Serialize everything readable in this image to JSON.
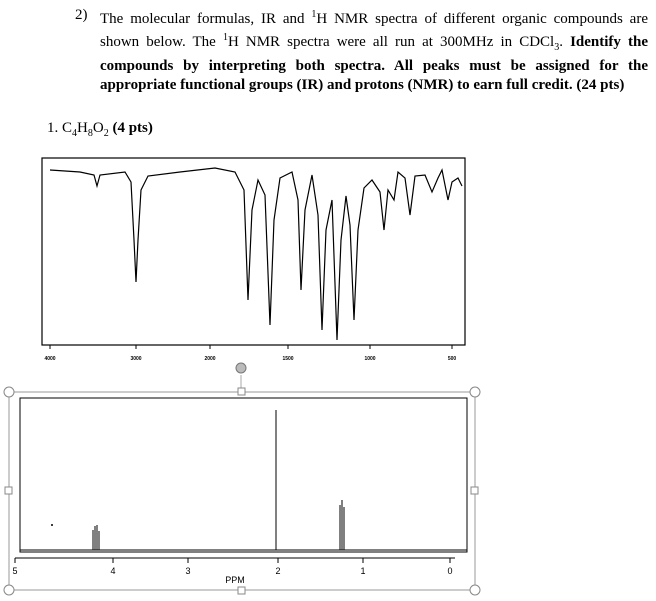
{
  "question": {
    "number": "2)",
    "parts": [
      "The molecular formulas, IR and ",
      "1",
      "H NMR spectra of different organic compounds are shown below. The ",
      "1",
      "H NMR spectra were all run at 300MHz in CDCl",
      "3",
      "."
    ],
    "instruction": "Identify the compounds by interpreting both spectra. All peaks must be assigned for the appropriate functional groups (IR) and protons (NMR) to earn full credit. (24 pts)"
  },
  "compound": {
    "label": "1.",
    "formula": [
      "C",
      "4",
      "H",
      "8",
      "O",
      "2"
    ],
    "points": "(4 pts)"
  },
  "ir": {
    "ticks": [
      "4000",
      "3000",
      "2000",
      "1500",
      "1000",
      "500"
    ]
  },
  "nmr": {
    "ticks": [
      "5",
      "4",
      "3",
      "2",
      "1",
      "0"
    ],
    "axis_label": "PPM"
  }
}
